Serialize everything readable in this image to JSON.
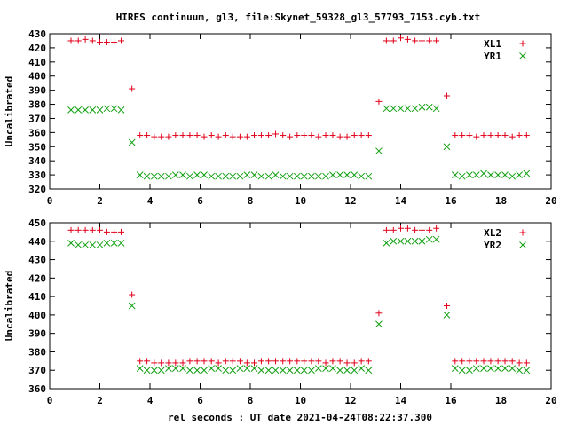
{
  "title": "HIRES continuum, gl3, file:Skynet_59328_gl3_57793_7153.cyb.txt",
  "colors": {
    "red": "#e0001a",
    "green": "#11a011"
  },
  "chart_data": [
    {
      "type": "scatter",
      "ylabel": "Uncalibrated",
      "xlabel": "",
      "xlim": [
        0,
        20
      ],
      "ylim": [
        320,
        430
      ],
      "xticks": [
        0,
        2,
        4,
        6,
        8,
        10,
        12,
        14,
        16,
        18,
        20
      ],
      "yticks": [
        320,
        330,
        340,
        350,
        360,
        370,
        380,
        390,
        400,
        410,
        420,
        430
      ],
      "grid": false,
      "legend_position": "top-right",
      "series": [
        {
          "name": "XL1",
          "marker": "plus",
          "color": "#e0001a",
          "x": [
            0.85,
            1.14,
            1.42,
            1.71,
            2.0,
            2.28,
            2.57,
            2.85,
            3.28,
            3.6,
            3.88,
            4.17,
            4.45,
            4.74,
            5.02,
            5.31,
            5.59,
            5.88,
            6.16,
            6.45,
            6.73,
            7.02,
            7.3,
            7.59,
            7.87,
            8.16,
            8.44,
            8.73,
            9.01,
            9.3,
            9.58,
            9.87,
            10.15,
            10.44,
            10.72,
            11.01,
            11.29,
            11.58,
            11.86,
            12.15,
            12.43,
            12.72,
            13.13,
            13.43,
            13.71,
            14.0,
            14.28,
            14.57,
            14.85,
            15.14,
            15.42,
            15.84,
            16.17,
            16.45,
            16.74,
            17.02,
            17.31,
            17.59,
            17.88,
            18.16,
            18.45,
            18.73,
            19.02
          ],
          "y": [
            425,
            425,
            426,
            425,
            424,
            424,
            424,
            425,
            391,
            358,
            358,
            357,
            357,
            357,
            358,
            358,
            358,
            358,
            357,
            358,
            357,
            358,
            357,
            357,
            357,
            358,
            358,
            358,
            359,
            358,
            357,
            358,
            358,
            358,
            357,
            358,
            358,
            357,
            357,
            358,
            358,
            358,
            382,
            425,
            425,
            427,
            426,
            425,
            425,
            425,
            425,
            386,
            358,
            358,
            358,
            357,
            358,
            358,
            358,
            358,
            357,
            358,
            358
          ]
        },
        {
          "name": "YR1",
          "marker": "cross",
          "color": "#11a011",
          "x": [
            0.85,
            1.14,
            1.42,
            1.71,
            2.0,
            2.28,
            2.57,
            2.85,
            3.28,
            3.6,
            3.88,
            4.17,
            4.45,
            4.74,
            5.02,
            5.31,
            5.59,
            5.88,
            6.16,
            6.45,
            6.73,
            7.02,
            7.3,
            7.59,
            7.87,
            8.16,
            8.44,
            8.73,
            9.01,
            9.3,
            9.58,
            9.87,
            10.15,
            10.44,
            10.72,
            11.01,
            11.29,
            11.58,
            11.86,
            12.15,
            12.43,
            12.72,
            13.13,
            13.43,
            13.71,
            14.0,
            14.28,
            14.57,
            14.85,
            15.14,
            15.42,
            15.84,
            16.17,
            16.45,
            16.74,
            17.02,
            17.31,
            17.59,
            17.88,
            18.16,
            18.45,
            18.73,
            19.02
          ],
          "y": [
            376,
            376,
            376,
            376,
            376,
            377,
            377,
            376,
            353,
            330,
            329,
            329,
            329,
            329,
            330,
            330,
            329,
            330,
            330,
            329,
            329,
            329,
            329,
            329,
            330,
            330,
            329,
            329,
            330,
            329,
            329,
            329,
            329,
            329,
            329,
            329,
            330,
            330,
            330,
            330,
            329,
            329,
            347,
            377,
            377,
            377,
            377,
            377,
            378,
            378,
            377,
            350,
            330,
            329,
            330,
            330,
            331,
            330,
            330,
            330,
            329,
            330,
            331
          ]
        }
      ]
    },
    {
      "type": "scatter",
      "ylabel": "Uncalibrated",
      "xlabel": "rel seconds : UT date 2021-04-24T08:22:37.300",
      "xlim": [
        0,
        20
      ],
      "ylim": [
        360,
        450
      ],
      "xticks": [
        0,
        2,
        4,
        6,
        8,
        10,
        12,
        14,
        16,
        18,
        20
      ],
      "yticks": [
        360,
        370,
        380,
        390,
        400,
        410,
        420,
        430,
        440,
        450
      ],
      "grid": false,
      "legend_position": "top-right",
      "series": [
        {
          "name": "XL2",
          "marker": "plus",
          "color": "#e0001a",
          "x": [
            0.85,
            1.14,
            1.42,
            1.71,
            2.0,
            2.28,
            2.57,
            2.85,
            3.28,
            3.6,
            3.88,
            4.17,
            4.45,
            4.74,
            5.02,
            5.31,
            5.59,
            5.88,
            6.16,
            6.45,
            6.73,
            7.02,
            7.3,
            7.59,
            7.87,
            8.16,
            8.44,
            8.73,
            9.01,
            9.3,
            9.58,
            9.87,
            10.15,
            10.44,
            10.72,
            11.01,
            11.29,
            11.58,
            11.86,
            12.15,
            12.43,
            12.72,
            13.13,
            13.43,
            13.71,
            14.0,
            14.28,
            14.57,
            14.85,
            15.14,
            15.42,
            15.84,
            16.17,
            16.45,
            16.74,
            17.02,
            17.31,
            17.59,
            17.88,
            18.16,
            18.45,
            18.73,
            19.02
          ],
          "y": [
            446,
            446,
            446,
            446,
            446,
            445,
            445,
            445,
            411,
            375,
            375,
            374,
            374,
            374,
            374,
            374,
            375,
            375,
            375,
            375,
            374,
            375,
            375,
            375,
            374,
            374,
            375,
            375,
            375,
            375,
            375,
            375,
            375,
            375,
            375,
            374,
            375,
            375,
            374,
            374,
            375,
            375,
            401,
            446,
            446,
            447,
            447,
            446,
            446,
            446,
            447,
            405,
            375,
            375,
            375,
            375,
            375,
            375,
            375,
            375,
            375,
            374,
            374
          ]
        },
        {
          "name": "YR2",
          "marker": "cross",
          "color": "#11a011",
          "x": [
            0.85,
            1.14,
            1.42,
            1.71,
            2.0,
            2.28,
            2.57,
            2.85,
            3.28,
            3.6,
            3.88,
            4.17,
            4.45,
            4.74,
            5.02,
            5.31,
            5.59,
            5.88,
            6.16,
            6.45,
            6.73,
            7.02,
            7.3,
            7.59,
            7.87,
            8.16,
            8.44,
            8.73,
            9.01,
            9.3,
            9.58,
            9.87,
            10.15,
            10.44,
            10.72,
            11.01,
            11.29,
            11.58,
            11.86,
            12.15,
            12.43,
            12.72,
            13.13,
            13.43,
            13.71,
            14.0,
            14.28,
            14.57,
            14.85,
            15.14,
            15.42,
            15.84,
            16.17,
            16.45,
            16.74,
            17.02,
            17.31,
            17.59,
            17.88,
            18.16,
            18.45,
            18.73,
            19.02
          ],
          "y": [
            439,
            438,
            438,
            438,
            438,
            439,
            439,
            439,
            405,
            371,
            370,
            370,
            370,
            371,
            371,
            371,
            370,
            370,
            370,
            371,
            371,
            370,
            370,
            371,
            371,
            371,
            370,
            370,
            370,
            370,
            370,
            370,
            370,
            370,
            371,
            371,
            371,
            370,
            370,
            370,
            371,
            370,
            395,
            439,
            440,
            440,
            440,
            440,
            440,
            441,
            441,
            400,
            371,
            370,
            370,
            371,
            371,
            371,
            371,
            371,
            371,
            370,
            370
          ]
        }
      ]
    }
  ]
}
